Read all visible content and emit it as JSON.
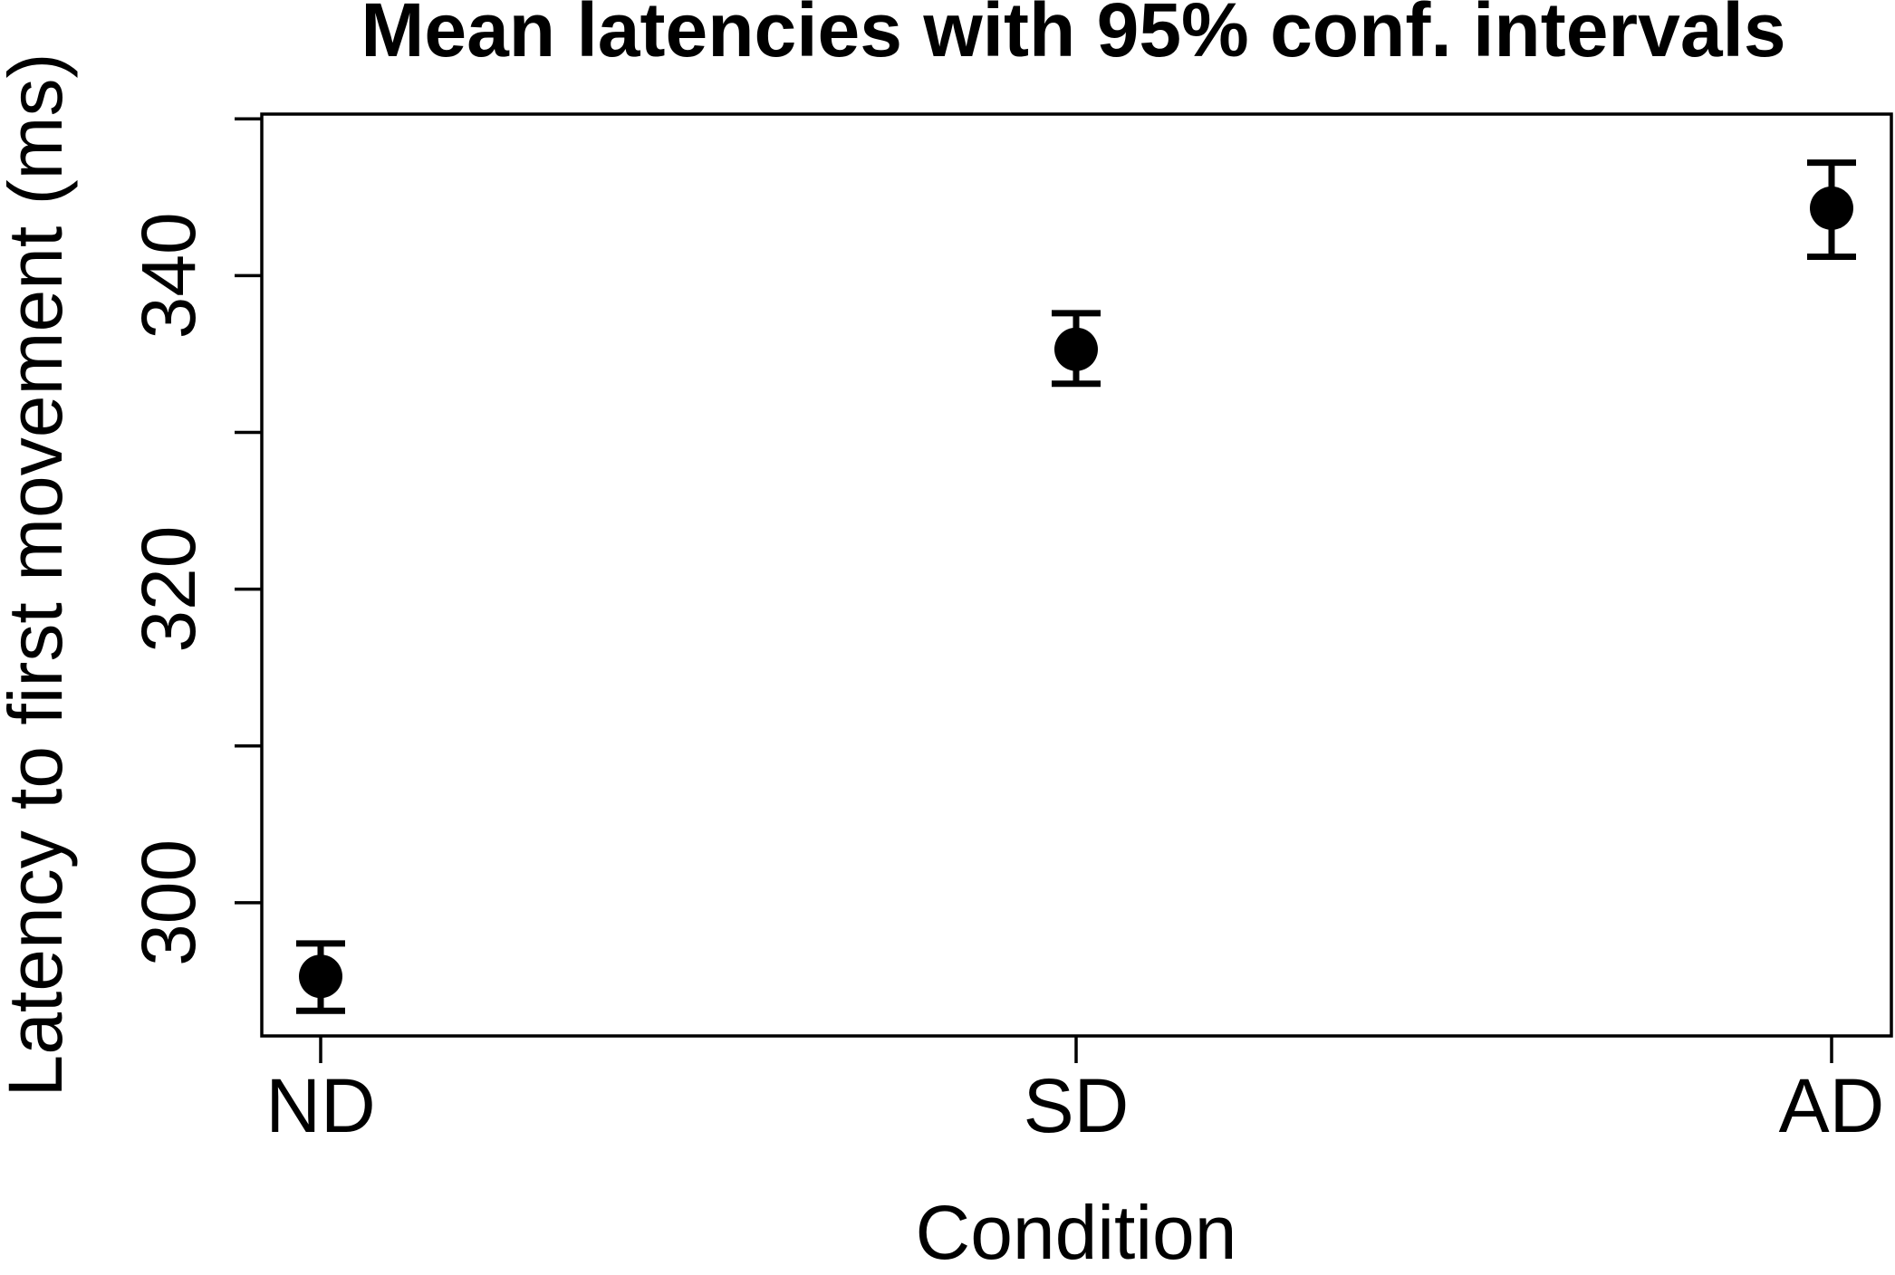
{
  "chart_data": {
    "type": "scatter",
    "title": "Mean latencies with 95% conf. intervals",
    "xlabel": "Condition",
    "ylabel": "Latency to first movement (ms)",
    "categories": [
      "ND",
      "SD",
      "AD"
    ],
    "points": [
      {
        "category": "ND",
        "mean": 295.3,
        "ci_low": 293.1,
        "ci_high": 297.4
      },
      {
        "category": "SD",
        "mean": 335.3,
        "ci_low": 333.1,
        "ci_high": 337.6
      },
      {
        "category": "AD",
        "mean": 344.3,
        "ci_low": 341.2,
        "ci_high": 347.2
      }
    ],
    "ylim": [
      291.5,
      350.3
    ],
    "yticks": [
      300,
      310,
      320,
      330,
      340,
      350
    ],
    "ytick_labels": [
      "300",
      "",
      "320",
      "",
      "340",
      ""
    ],
    "grid": false,
    "legend": "none",
    "marker": "filled-circle",
    "color": "#000000"
  }
}
